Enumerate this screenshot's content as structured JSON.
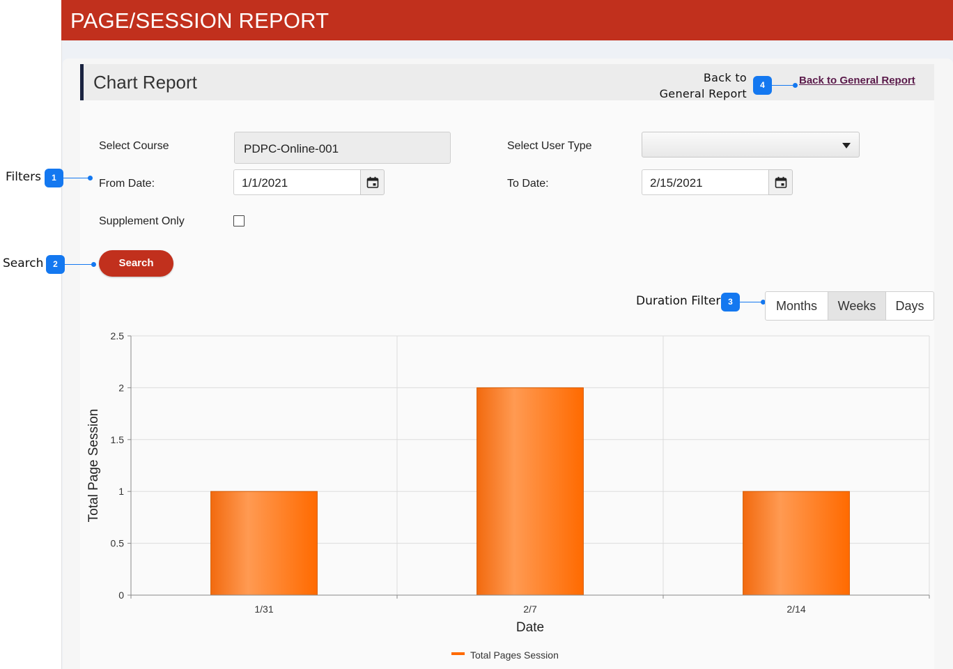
{
  "header": {
    "title": "PAGE/SESSION REPORT"
  },
  "card": {
    "title": "Chart Report",
    "back_link_label": "Back to General Report"
  },
  "filters": {
    "course_label": "Select Course",
    "course_value": "PDPC-Online-001",
    "user_type_label": "Select User Type",
    "user_type_value": "",
    "from_date_label": "From Date:",
    "from_date_value": "1/1/2021",
    "to_date_label": "To Date:",
    "to_date_value": "2/15/2021",
    "supplement_label": "Supplement Only",
    "supplement_checked": false,
    "search_label": "Search"
  },
  "duration": {
    "options": [
      "Months",
      "Weeks",
      "Days"
    ],
    "selected": "Weeks"
  },
  "annotations": [
    {
      "num": "1",
      "text": "Filters"
    },
    {
      "num": "2",
      "text": "Search"
    },
    {
      "num": "3",
      "text": "Duration Filter"
    },
    {
      "num": "4",
      "text": "Back to General Report"
    }
  ],
  "colors": {
    "brand": "#c1301d",
    "bar": "#ff7a1a",
    "badge": "#1478f0"
  },
  "chart_data": {
    "type": "bar",
    "categories": [
      "1/31",
      "2/7",
      "2/14"
    ],
    "series": [
      {
        "name": "Total Pages Session",
        "values": [
          1,
          2,
          1
        ]
      }
    ],
    "xlabel": "Date",
    "ylabel": "Total Page Session",
    "ylim": [
      0,
      2.5
    ],
    "yticks": [
      "0",
      "0.5",
      "1",
      "1.5",
      "2",
      "2.5"
    ],
    "grid": true,
    "legend": "bottom"
  }
}
